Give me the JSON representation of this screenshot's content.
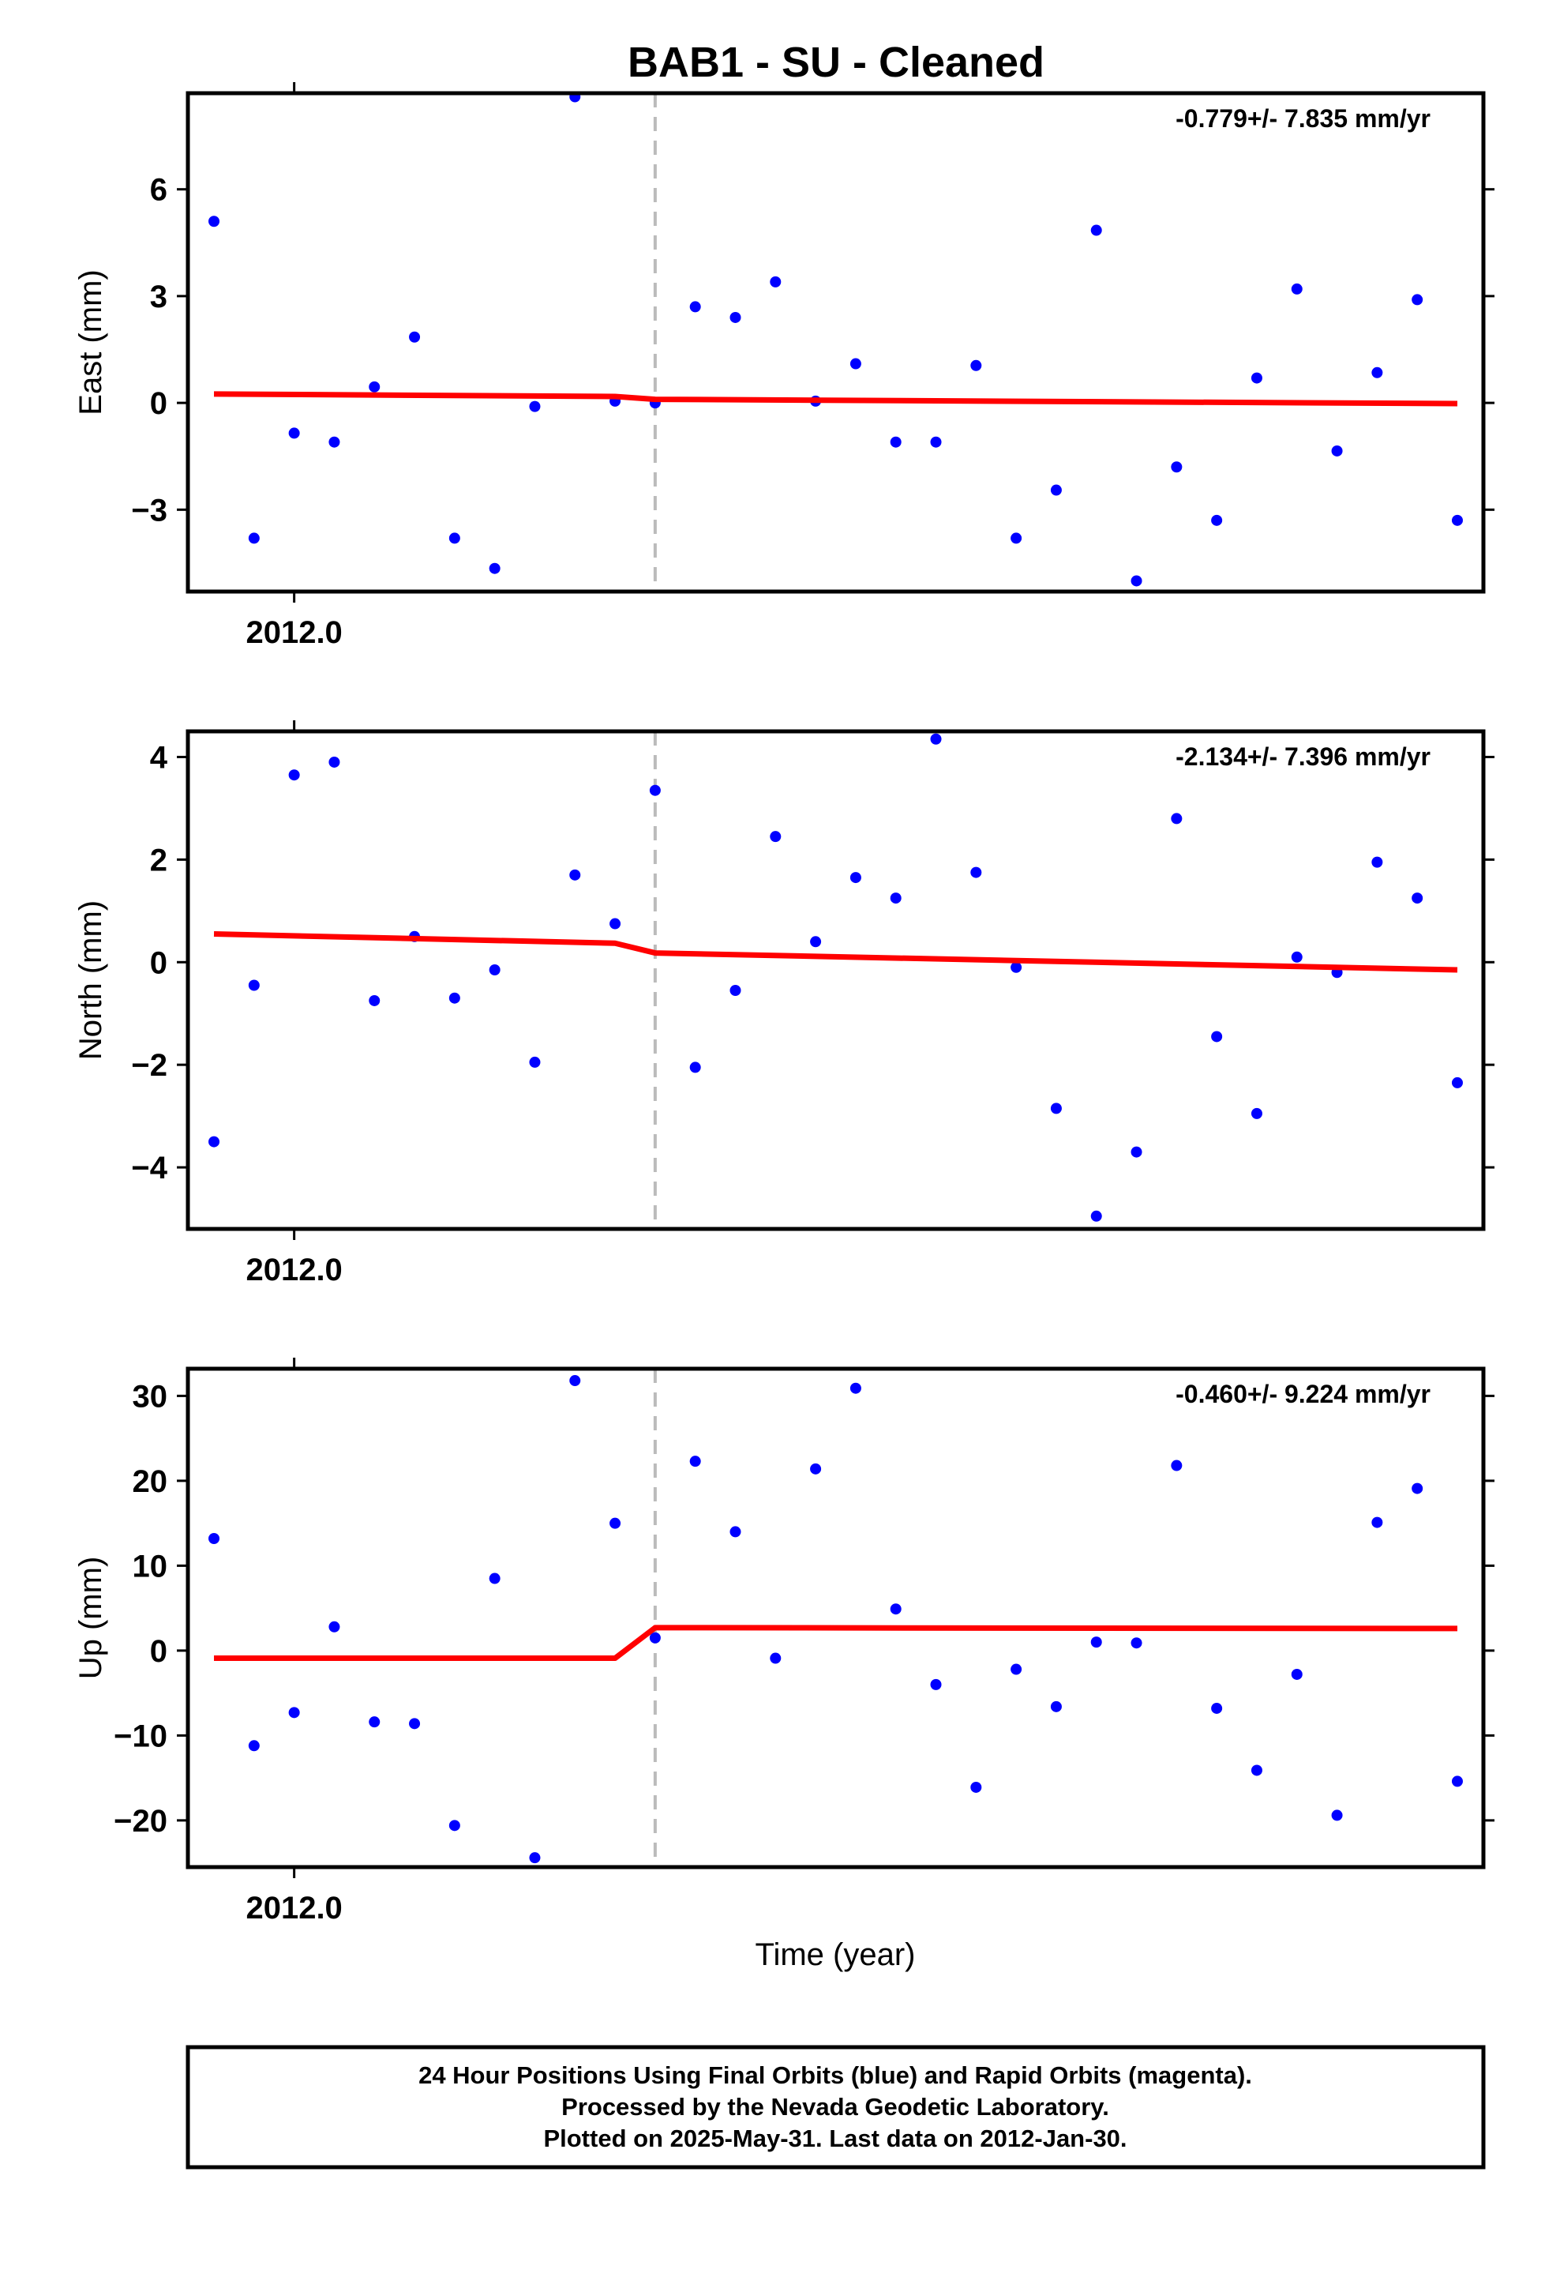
{
  "title": "BAB1  - SU - Cleaned",
  "xlabel": "Time (year)",
  "footer": {
    "line1": "24 Hour Positions Using Final Orbits (blue) and Rapid Orbits (magenta).",
    "line2": "Processed by the Nevada Geodetic Laboratory.",
    "line3": "Plotted on 2025-May-31. Last data on 2012-Jan-30."
  },
  "colors": {
    "points": "#0000ff",
    "fit": "#ff0000",
    "offset_line": "#bbbbbb",
    "frame": "#000000"
  },
  "chart_data": [
    {
      "type": "scatter",
      "panel": "east",
      "ylabel": "East (mm)",
      "rate": "-0.779+/- 7.835 mm/yr",
      "year_tick": "2012.0",
      "y_ticks": [
        "6",
        "3",
        "0",
        "−3"
      ],
      "y_tick_values": [
        6,
        3,
        0,
        -3
      ],
      "ylim": [
        -5.3,
        8.7
      ],
      "x_day_offsets": [
        -2,
        -1,
        0,
        1,
        2,
        3,
        4,
        5,
        6,
        7,
        8,
        9,
        10,
        11,
        12,
        13,
        14,
        15,
        16,
        17,
        18,
        19,
        20,
        21,
        22,
        23,
        24,
        25,
        26,
        27,
        28,
        29
      ],
      "values": [
        5.1,
        -3.8,
        -0.85,
        -1.1,
        0.45,
        1.85,
        -3.8,
        -4.65,
        -0.1,
        8.6,
        0.05,
        0.0,
        2.7,
        2.4,
        3.4,
        0.05,
        1.1,
        -1.1,
        -1.1,
        1.05,
        -3.8,
        -2.45,
        4.85,
        -5.0,
        -1.8,
        -3.3,
        0.7,
        3.2,
        -1.35,
        0.85,
        2.9,
        -3.3
      ],
      "fit": {
        "x": [
          -2,
          8,
          9,
          29
        ],
        "y": [
          0.25,
          0.18,
          0.1,
          -0.02
        ]
      },
      "offset_day": 9
    },
    {
      "type": "scatter",
      "panel": "north",
      "ylabel": "North (mm)",
      "rate": "-2.134+/- 7.396 mm/yr",
      "year_tick": "2012.0",
      "y_ticks": [
        "4",
        "2",
        "0",
        "−2",
        "−4"
      ],
      "y_tick_values": [
        4,
        2,
        0,
        -2,
        -4
      ],
      "ylim": [
        -5.2,
        4.5
      ],
      "x_day_offsets": [
        -2,
        -1,
        0,
        1,
        2,
        3,
        4,
        5,
        6,
        7,
        8,
        9,
        10,
        11,
        12,
        13,
        14,
        15,
        16,
        17,
        18,
        19,
        20,
        21,
        22,
        23,
        24,
        25,
        26,
        27,
        28,
        29
      ],
      "values": [
        -3.5,
        -0.45,
        3.65,
        3.9,
        -0.75,
        0.5,
        -0.7,
        -0.15,
        -1.95,
        1.7,
        0.75,
        3.35,
        -2.05,
        -0.55,
        2.45,
        0.4,
        1.65,
        1.25,
        4.35,
        1.75,
        -0.1,
        -2.85,
        -4.95,
        -3.7,
        2.8,
        -1.45,
        -2.95,
        0.1,
        -0.2,
        1.95,
        1.25,
        -2.35
      ],
      "fit": {
        "x": [
          -2,
          8,
          9,
          29
        ],
        "y": [
          0.55,
          0.37,
          0.18,
          -0.15
        ]
      },
      "offset_day": 9
    },
    {
      "type": "scatter",
      "panel": "up",
      "ylabel": "Up (mm)",
      "rate": "-0.460+/- 9.224 mm/yr",
      "year_tick": "2012.0",
      "y_ticks": [
        "30",
        "20",
        "10",
        "0",
        "−10",
        "−20"
      ],
      "y_tick_values": [
        30,
        20,
        10,
        0,
        -10,
        -20
      ],
      "ylim": [
        -25.5,
        33.2
      ],
      "x_day_offsets": [
        -2,
        -1,
        0,
        1,
        2,
        3,
        4,
        5,
        6,
        7,
        8,
        9,
        10,
        11,
        12,
        13,
        14,
        15,
        16,
        17,
        18,
        19,
        20,
        21,
        22,
        23,
        24,
        25,
        26,
        27,
        28,
        29
      ],
      "values": [
        13.2,
        -11.2,
        -7.3,
        2.8,
        -8.4,
        -8.6,
        -20.6,
        8.5,
        -24.4,
        31.8,
        15.0,
        1.5,
        22.3,
        14.0,
        -0.9,
        21.4,
        30.9,
        4.9,
        -4.0,
        -16.1,
        -2.2,
        -6.6,
        1.0,
        0.9,
        21.8,
        -6.8,
        -14.1,
        -2.8,
        -19.4,
        15.1,
        19.1,
        -15.4
      ],
      "fit": {
        "x": [
          -2,
          8,
          9,
          29
        ],
        "y": [
          -0.9,
          -0.9,
          2.7,
          2.6
        ]
      },
      "offset_day": 9
    }
  ]
}
